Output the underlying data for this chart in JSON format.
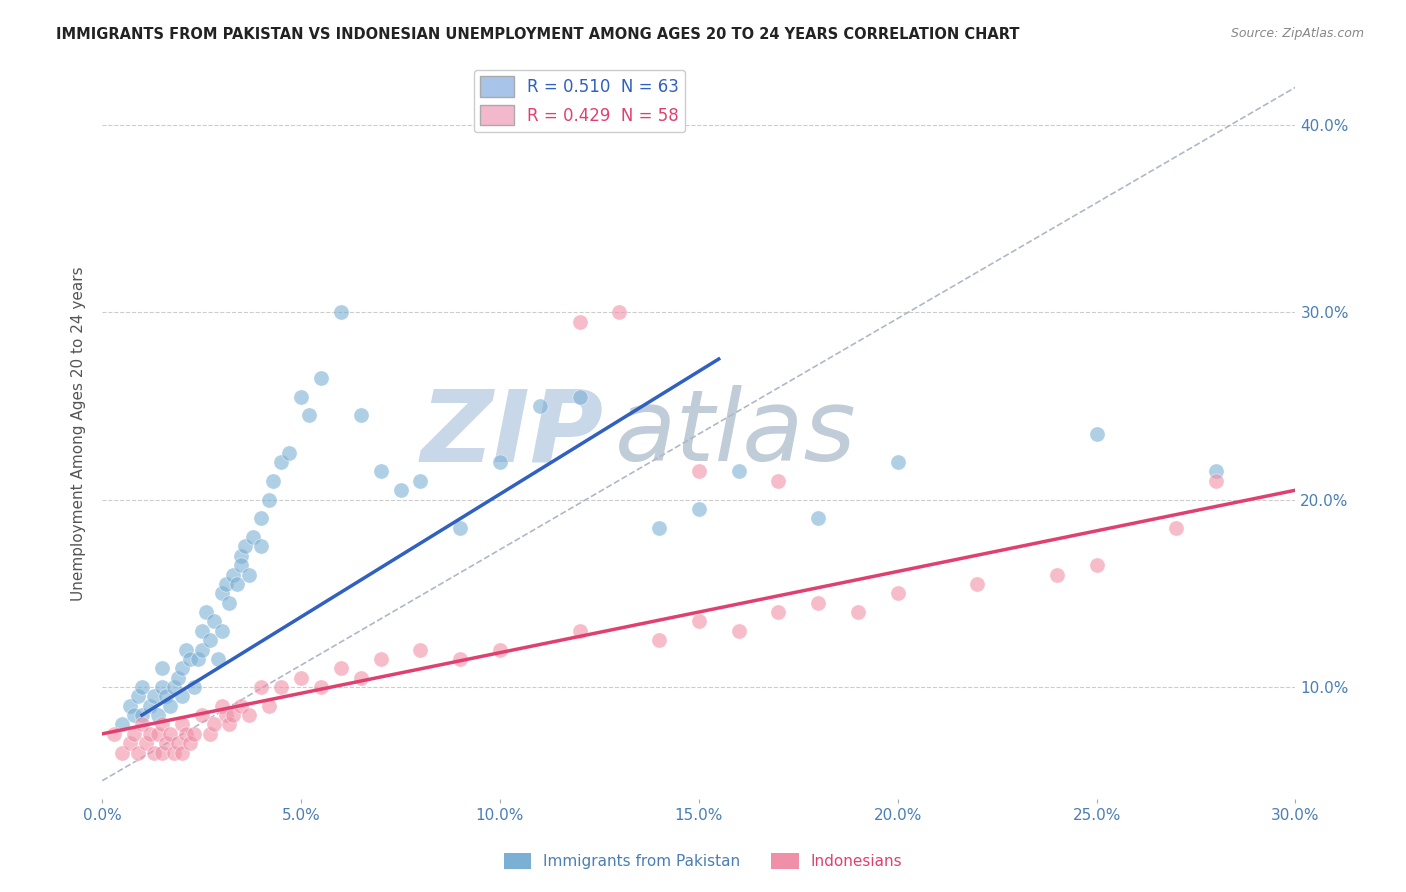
{
  "title": "IMMIGRANTS FROM PAKISTAN VS INDONESIAN UNEMPLOYMENT AMONG AGES 20 TO 24 YEARS CORRELATION CHART",
  "source": "Source: ZipAtlas.com",
  "ylabel": "Unemployment Among Ages 20 to 24 years",
  "xlim": [
    0.0,
    0.3
  ],
  "ylim": [
    0.04,
    0.43
  ],
  "xticks": [
    0.0,
    0.05,
    0.1,
    0.15,
    0.2,
    0.25,
    0.3
  ],
  "xtick_labels": [
    "0.0%",
    "5.0%",
    "10.0%",
    "15.0%",
    "20.0%",
    "25.0%",
    "30.0%"
  ],
  "yticks_right": [
    0.1,
    0.2,
    0.3,
    0.4
  ],
  "ytick_labels_right": [
    "10.0%",
    "20.0%",
    "30.0%",
    "40.0%"
  ],
  "legend_entries": [
    {
      "label": "R = 0.510  N = 63",
      "color": "#a8c4e8"
    },
    {
      "label": "R = 0.429  N = 58",
      "color": "#f4b8cc"
    }
  ],
  "scatter_blue_color": "#7bafd4",
  "scatter_pink_color": "#f090a8",
  "trendline_blue_color": "#3060c0",
  "trendline_pink_color": "#e04070",
  "ref_line_color": "#b0b8c8",
  "grid_color": "#cccccc",
  "background_color": "#ffffff",
  "title_color": "#222222",
  "axis_label_color": "#4a7fb5",
  "watermark_zip": "ZIP",
  "watermark_atlas": "atlas",
  "watermark_color_zip": "#c8d8e8",
  "watermark_color_atlas": "#c0ccd8",
  "blue_scatter_x": [
    0.005,
    0.007,
    0.008,
    0.009,
    0.01,
    0.01,
    0.012,
    0.013,
    0.014,
    0.015,
    0.015,
    0.016,
    0.017,
    0.018,
    0.019,
    0.02,
    0.02,
    0.021,
    0.022,
    0.023,
    0.024,
    0.025,
    0.025,
    0.026,
    0.027,
    0.028,
    0.029,
    0.03,
    0.03,
    0.031,
    0.032,
    0.033,
    0.034,
    0.035,
    0.035,
    0.036,
    0.037,
    0.038,
    0.04,
    0.04,
    0.042,
    0.043,
    0.045,
    0.047,
    0.05,
    0.052,
    0.055,
    0.06,
    0.065,
    0.07,
    0.075,
    0.08,
    0.09,
    0.1,
    0.11,
    0.12,
    0.14,
    0.15,
    0.16,
    0.18,
    0.2,
    0.25,
    0.28
  ],
  "blue_scatter_y": [
    0.08,
    0.09,
    0.085,
    0.095,
    0.1,
    0.085,
    0.09,
    0.095,
    0.085,
    0.1,
    0.11,
    0.095,
    0.09,
    0.1,
    0.105,
    0.11,
    0.095,
    0.12,
    0.115,
    0.1,
    0.115,
    0.13,
    0.12,
    0.14,
    0.125,
    0.135,
    0.115,
    0.15,
    0.13,
    0.155,
    0.145,
    0.16,
    0.155,
    0.17,
    0.165,
    0.175,
    0.16,
    0.18,
    0.19,
    0.175,
    0.2,
    0.21,
    0.22,
    0.225,
    0.255,
    0.245,
    0.265,
    0.3,
    0.245,
    0.215,
    0.205,
    0.21,
    0.185,
    0.22,
    0.25,
    0.255,
    0.185,
    0.195,
    0.215,
    0.19,
    0.22,
    0.235,
    0.215
  ],
  "pink_scatter_x": [
    0.003,
    0.005,
    0.007,
    0.008,
    0.009,
    0.01,
    0.011,
    0.012,
    0.013,
    0.014,
    0.015,
    0.015,
    0.016,
    0.017,
    0.018,
    0.019,
    0.02,
    0.02,
    0.021,
    0.022,
    0.023,
    0.025,
    0.027,
    0.028,
    0.03,
    0.031,
    0.032,
    0.033,
    0.035,
    0.037,
    0.04,
    0.042,
    0.045,
    0.05,
    0.055,
    0.06,
    0.065,
    0.07,
    0.08,
    0.09,
    0.1,
    0.12,
    0.14,
    0.15,
    0.16,
    0.17,
    0.18,
    0.19,
    0.2,
    0.22,
    0.24,
    0.25,
    0.27,
    0.28,
    0.12,
    0.15,
    0.17,
    0.13
  ],
  "pink_scatter_y": [
    0.075,
    0.065,
    0.07,
    0.075,
    0.065,
    0.08,
    0.07,
    0.075,
    0.065,
    0.075,
    0.08,
    0.065,
    0.07,
    0.075,
    0.065,
    0.07,
    0.08,
    0.065,
    0.075,
    0.07,
    0.075,
    0.085,
    0.075,
    0.08,
    0.09,
    0.085,
    0.08,
    0.085,
    0.09,
    0.085,
    0.1,
    0.09,
    0.1,
    0.105,
    0.1,
    0.11,
    0.105,
    0.115,
    0.12,
    0.115,
    0.12,
    0.13,
    0.125,
    0.135,
    0.13,
    0.14,
    0.145,
    0.14,
    0.15,
    0.155,
    0.16,
    0.165,
    0.185,
    0.21,
    0.295,
    0.215,
    0.21,
    0.3
  ],
  "blue_trendline_x_start": 0.01,
  "blue_trendline_x_end": 0.155,
  "blue_trendline_y_start": 0.085,
  "blue_trendline_y_end": 0.275,
  "pink_trendline_x_start": 0.0,
  "pink_trendline_x_end": 0.3,
  "pink_trendline_y_start": 0.075,
  "pink_trendline_y_end": 0.205,
  "ref_line_x": [
    0.0,
    0.3
  ],
  "ref_line_y": [
    0.05,
    0.42
  ]
}
